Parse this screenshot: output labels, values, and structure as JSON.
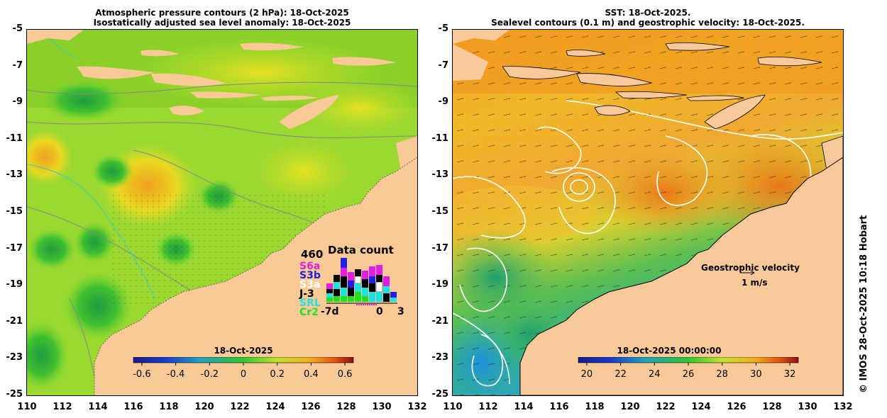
{
  "left_panel": {
    "title_line1": "Atmospheric pressure contours (2 hPa): 18-Oct-2025",
    "title_line2": "Isostatically adjusted sea level anomaly: 18-Oct-2025",
    "colorbar": {
      "label": "18-Oct-2025",
      "ticks": [
        "-0.6",
        "-0.4",
        "-0.2",
        "0",
        "0.2",
        "0.4",
        "0.6"
      ],
      "range": [
        -0.65,
        0.65
      ]
    },
    "data_count": {
      "title": "Data count",
      "max_label": "460",
      "xaxis_start": "-7d",
      "xaxis_zero": "0",
      "xaxis_end": "3",
      "missions": [
        {
          "name": "S6a",
          "color": "#e020e0"
        },
        {
          "name": "S3b",
          "color": "#2020e0"
        },
        {
          "name": "S3a",
          "color": "#ffffff"
        },
        {
          "name": "J-3",
          "color": "#000000"
        },
        {
          "name": "SRL",
          "color": "#20e0e0"
        },
        {
          "name": "Cr2",
          "color": "#20e020"
        }
      ]
    }
  },
  "right_panel": {
    "title_line1": "SST: 18-Oct-2025.",
    "title_line2": "Sealevel contours (0.1 m) and geostrophic velocity: 18-Oct-2025.",
    "colorbar": {
      "label": "18-Oct-2025 00:00:00",
      "ticks": [
        "20",
        "22",
        "24",
        "26",
        "28",
        "30",
        "32"
      ],
      "range": [
        19.5,
        32.5
      ]
    },
    "velocity_legend_title": "Geostrophic velocity",
    "velocity_legend_scale": "1 m/s"
  },
  "axes": {
    "y_ticks": [
      "-5",
      "-7",
      "-9",
      "-11",
      "-13",
      "-15",
      "-17",
      "-19",
      "-21",
      "-23",
      "-25"
    ],
    "x_ticks": [
      "110",
      "112",
      "114",
      "116",
      "118",
      "120",
      "122",
      "124",
      "126",
      "128",
      "130",
      "132"
    ],
    "lon_range": [
      110,
      132
    ],
    "lat_range": [
      -25,
      -5
    ]
  },
  "credit": "© IMOS 28-Oct-2025 10:18 Hobart",
  "colors": {
    "land": "#f9c998",
    "land_right": "#fac99a"
  }
}
